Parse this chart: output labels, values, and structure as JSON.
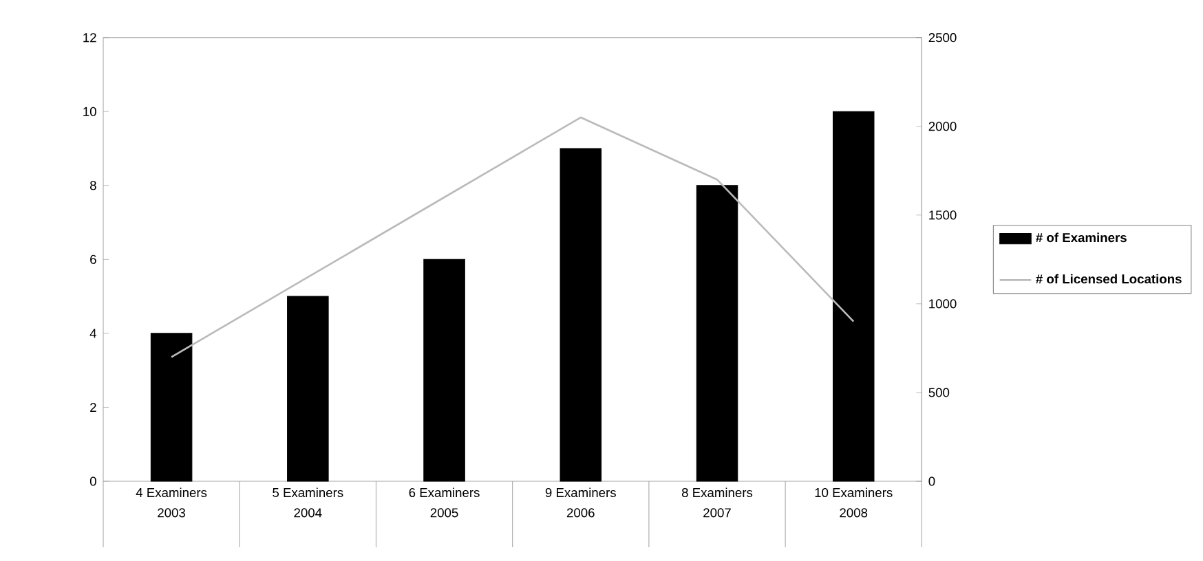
{
  "chart_data": {
    "type": "bar",
    "categories": [
      "2003",
      "2004",
      "2005",
      "2006",
      "2007",
      "2008"
    ],
    "series": [
      {
        "name": "# of Examiners",
        "color": "#000000",
        "values": [
          4,
          5,
          6,
          9,
          8,
          10
        ],
        "value_labels": [
          "4 Examiners",
          "5 Examiners",
          "6 Examiners",
          "9 Examiners",
          "8 Examiners",
          "10 Examiners"
        ]
      },
      {
        "name": "# of Licensed Locations",
        "type": "line",
        "axis": "y2",
        "color": "#bbbbbb",
        "values": [
          700,
          1150,
          1600,
          2050,
          1700,
          900
        ]
      }
    ],
    "ylim": [
      0,
      12
    ],
    "yticks": [
      0,
      2,
      4,
      6,
      8,
      10,
      12
    ],
    "y2lim": [
      0,
      2500
    ],
    "y2ticks": [
      0,
      500,
      1000,
      1500,
      2000,
      2500
    ],
    "legend": "right"
  }
}
